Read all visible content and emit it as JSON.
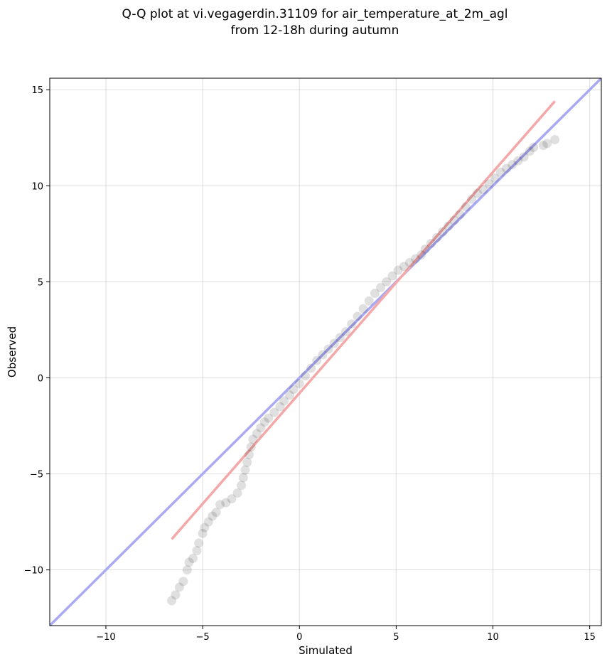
{
  "chart_data": {
    "type": "scatter",
    "title": [
      "Q-Q plot at vi.vegagerdin.31109 for air_temperature_at_2m_agl",
      "from 12-18h during autumn"
    ],
    "xlabel": "Simulated",
    "ylabel": "Observed",
    "xlim": [
      -12.9,
      15.6
    ],
    "ylim": [
      -12.9,
      15.6
    ],
    "xticks": [
      -10,
      -5,
      0,
      5,
      10,
      15
    ],
    "yticks": [
      -10,
      -5,
      0,
      5,
      10,
      15
    ],
    "tick_labels": [
      "−10",
      "−5",
      "0",
      "5",
      "10",
      "15"
    ],
    "grid": true,
    "reference_line": {
      "x": [
        -12.9,
        15.6
      ],
      "y": [
        -12.9,
        15.6
      ],
      "color": "#a9a9f4"
    },
    "fit_line": {
      "x": [
        -6.6,
        13.2
      ],
      "y": [
        -8.4,
        14.4
      ],
      "color": "#f4a8a8"
    },
    "series": [
      {
        "marker_color": "#000000",
        "quantiles": [
          [
            -6.6,
            -11.6
          ],
          [
            -6.4,
            -11.3
          ],
          [
            -6.2,
            -10.9
          ],
          [
            -6.0,
            -10.6
          ],
          [
            -5.8,
            -10.0
          ],
          [
            -5.7,
            -9.6
          ],
          [
            -5.5,
            -9.4
          ],
          [
            -5.3,
            -9.0
          ],
          [
            -5.2,
            -8.6
          ],
          [
            -5.0,
            -8.1
          ],
          [
            -4.9,
            -7.8
          ],
          [
            -4.7,
            -7.5
          ],
          [
            -4.5,
            -7.2
          ],
          [
            -4.3,
            -7.0
          ],
          [
            -4.1,
            -6.6
          ],
          [
            -3.8,
            -6.5
          ],
          [
            -3.5,
            -6.3
          ],
          [
            -3.2,
            -6.0
          ],
          [
            -3.0,
            -5.6
          ],
          [
            -2.9,
            -5.2
          ],
          [
            -2.8,
            -4.8
          ],
          [
            -2.7,
            -4.4
          ],
          [
            -2.6,
            -4.0
          ],
          [
            -2.5,
            -3.6
          ],
          [
            -2.4,
            -3.2
          ],
          [
            -2.2,
            -2.9
          ],
          [
            -2.0,
            -2.6
          ],
          [
            -1.8,
            -2.3
          ],
          [
            -1.6,
            -2.1
          ],
          [
            -1.3,
            -1.8
          ],
          [
            -1.0,
            -1.5
          ],
          [
            -0.8,
            -1.2
          ],
          [
            -0.5,
            -0.9
          ],
          [
            -0.3,
            -0.6
          ],
          [
            0.0,
            -0.3
          ],
          [
            0.3,
            0.1
          ],
          [
            0.6,
            0.5
          ],
          [
            0.9,
            0.9
          ],
          [
            1.2,
            1.2
          ],
          [
            1.5,
            1.5
          ],
          [
            1.8,
            1.8
          ],
          [
            2.1,
            2.1
          ],
          [
            2.4,
            2.4
          ],
          [
            2.7,
            2.8
          ],
          [
            3.0,
            3.2
          ],
          [
            3.3,
            3.6
          ],
          [
            3.6,
            4.0
          ],
          [
            3.9,
            4.4
          ],
          [
            4.2,
            4.7
          ],
          [
            4.5,
            5.0
          ],
          [
            4.8,
            5.3
          ],
          [
            5.1,
            5.6
          ],
          [
            5.4,
            5.8
          ],
          [
            5.7,
            6.0
          ],
          [
            6.0,
            6.2
          ],
          [
            6.3,
            6.4
          ],
          [
            6.5,
            6.7
          ],
          [
            6.8,
            7.0
          ],
          [
            7.1,
            7.3
          ],
          [
            7.4,
            7.6
          ],
          [
            7.7,
            7.9
          ],
          [
            8.0,
            8.2
          ],
          [
            8.3,
            8.5
          ],
          [
            8.6,
            8.9
          ],
          [
            8.9,
            9.3
          ],
          [
            9.2,
            9.6
          ],
          [
            9.5,
            9.8
          ],
          [
            9.8,
            10.1
          ],
          [
            10.1,
            10.4
          ],
          [
            10.4,
            10.7
          ],
          [
            10.7,
            10.9
          ],
          [
            11.0,
            11.1
          ],
          [
            11.3,
            11.3
          ],
          [
            11.6,
            11.5
          ],
          [
            11.9,
            11.8
          ],
          [
            12.1,
            12.0
          ],
          [
            12.6,
            12.1
          ],
          [
            12.8,
            12.2
          ],
          [
            13.2,
            12.4
          ]
        ]
      }
    ]
  }
}
